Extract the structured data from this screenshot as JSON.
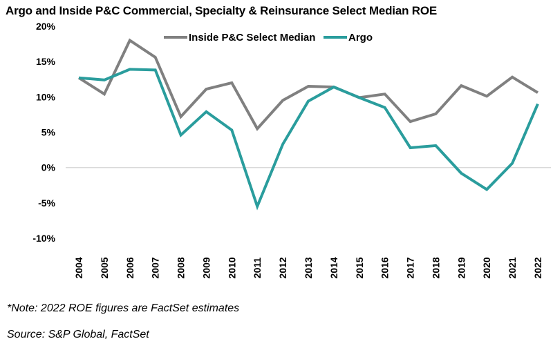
{
  "chart_data": {
    "type": "line",
    "title": "Argo and Inside P&C Commercial, Specialty & Reinsurance Select Median ROE",
    "xlabel": "",
    "ylabel": "",
    "x": [
      "2004",
      "2005",
      "2006",
      "2007",
      "2008",
      "2009",
      "2010",
      "2011",
      "2012",
      "2013",
      "2014",
      "2015",
      "2016",
      "2017",
      "2018",
      "2019",
      "2020",
      "2021",
      "2022"
    ],
    "ylim": [
      -10,
      20
    ],
    "yticks": [
      -10,
      -5,
      0,
      5,
      10,
      15,
      20
    ],
    "ytick_labels": [
      "-10%",
      "-5%",
      "0%",
      "5%",
      "10%",
      "15%",
      "20%"
    ],
    "grid": "zero-line only",
    "legend_position": "top-center",
    "series": [
      {
        "name": "Inside P&C Select Median",
        "color": "#808080",
        "values": [
          12.7,
          10.4,
          18.0,
          15.6,
          7.2,
          11.1,
          12.0,
          5.5,
          9.5,
          11.5,
          11.4,
          9.9,
          10.4,
          6.5,
          7.6,
          11.6,
          10.1,
          12.8,
          10.6
        ]
      },
      {
        "name": "Argo",
        "color": "#2a9d9d",
        "values": [
          12.7,
          12.4,
          13.9,
          13.8,
          4.6,
          7.9,
          5.3,
          -5.5,
          3.3,
          9.4,
          11.4,
          9.9,
          8.5,
          2.8,
          3.1,
          -0.8,
          -3.1,
          0.6,
          9.0
        ]
      }
    ]
  },
  "notes": {
    "note": "*Note: 2022 ROE figures are FactSet estimates",
    "source": "Source: S&P Global, FactSet"
  }
}
